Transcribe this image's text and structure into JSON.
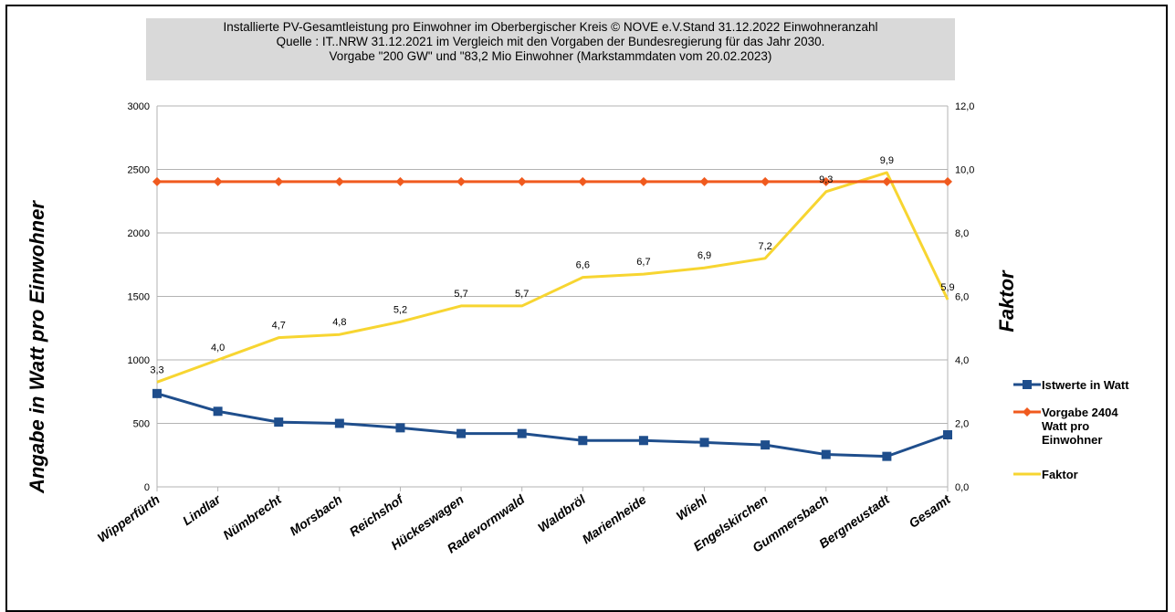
{
  "title_lines": [
    "Installierte PV-Gesamtleistung pro Einwohner im Oberbergischer Kreis © NOVE e.V.Stand 31.12.2022 Einwohneranzahl",
    "Quelle : IT..NRW 31.12.2021 im Vergleich mit den Vorgaben der Bundesregierung für das Jahr 2030.",
    "Vorgabe \"200 GW\" und \"83,2 Mio Einwohner   (Markstammdaten vom 20.02.2023)"
  ],
  "chart_data": {
    "type": "line",
    "categories": [
      "Wipperfürth",
      "Lindlar",
      "Nümbrecht",
      "Morsbach",
      "Reichshof",
      "Hückeswagen",
      "Radevormwald",
      "Waldbröl",
      "Marienheide",
      "Wiehl",
      "Engelskirchen",
      "Gummersbach",
      "Bergneustadt",
      "Gesamt"
    ],
    "ylabel": "Angabe in Watt pro Einwohner",
    "y2label": "Faktor",
    "ylim": [
      0,
      3000
    ],
    "y2lim": [
      0,
      12
    ],
    "y_ticks": [
      "0",
      "500",
      "1000",
      "1500",
      "2000",
      "2500",
      "3000"
    ],
    "y2_ticks": [
      "0,0",
      "2,0",
      "4,0",
      "6,0",
      "8,0",
      "10,0",
      "12,0"
    ],
    "grid": true,
    "legend_position": "right",
    "series": [
      {
        "name": "Istwerte in Watt",
        "axis": "left",
        "color": "#1f4e8c",
        "marker": "square",
        "values": [
          735,
          595,
          510,
          500,
          465,
          420,
          420,
          365,
          365,
          350,
          330,
          255,
          240,
          410
        ]
      },
      {
        "name": "Vorgabe 2404 Watt pro Einwohner",
        "axis": "left",
        "color": "#f05a1e",
        "marker": "diamond",
        "values": [
          2404,
          2404,
          2404,
          2404,
          2404,
          2404,
          2404,
          2404,
          2404,
          2404,
          2404,
          2404,
          2404,
          2404
        ]
      },
      {
        "name": "Faktor",
        "axis": "right",
        "color": "#f7d531",
        "marker": "none",
        "values": [
          3.3,
          4.0,
          4.7,
          4.8,
          5.2,
          5.7,
          5.7,
          6.6,
          6.7,
          6.9,
          7.2,
          9.3,
          9.9,
          5.9
        ],
        "labels": [
          "3,3",
          "4,0",
          "4,7",
          "4,8",
          "5,2",
          "5,7",
          "5,7",
          "6,6",
          "6,7",
          "6,9",
          "7,2",
          "9,3",
          "9,9",
          "5,9"
        ]
      }
    ],
    "legend_entries": [
      {
        "lines": [
          "Istwerte in Watt"
        ],
        "color": "#1f4e8c",
        "marker": "square"
      },
      {
        "lines": [
          "Vorgabe 2404",
          "Watt pro",
          "Einwohner"
        ],
        "color": "#f05a1e",
        "marker": "diamond"
      },
      {
        "lines": [
          "Faktor"
        ],
        "color": "#f7d531",
        "marker": "none"
      }
    ]
  }
}
